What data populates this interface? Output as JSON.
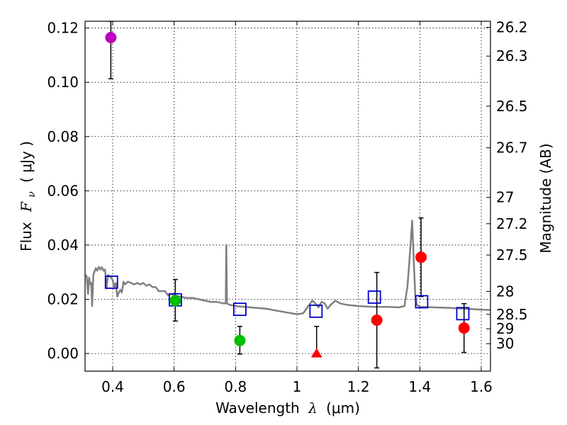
{
  "chart_data": {
    "type": "scatter",
    "xlabel_prefix": "Wavelength",
    "xlabel_symbol": "λ",
    "xlabel_unit": "(μm)",
    "ylabel_prefix": "Flux",
    "ylabel_symbol": "F",
    "ylabel_sub": "ν",
    "ylabel_unit": "( μJy )",
    "y2label": "Magnitude (AB)",
    "xlim": [
      0.31,
      1.63
    ],
    "ylim": [
      -0.0065,
      0.1225
    ],
    "grid": true,
    "x_ticks": [
      {
        "value": 0.4,
        "label": "0.4"
      },
      {
        "value": 0.6,
        "label": "0.6"
      },
      {
        "value": 0.8,
        "label": "0.8"
      },
      {
        "value": 1.0,
        "label": "1"
      },
      {
        "value": 1.2,
        "label": "1.2"
      },
      {
        "value": 1.4,
        "label": "1.4"
      },
      {
        "value": 1.6,
        "label": "1.6"
      }
    ],
    "y_ticks": [
      {
        "value": 0.0,
        "label": "0.00"
      },
      {
        "value": 0.02,
        "label": "0.02"
      },
      {
        "value": 0.04,
        "label": "0.04"
      },
      {
        "value": 0.06,
        "label": "0.06"
      },
      {
        "value": 0.08,
        "label": "0.08"
      },
      {
        "value": 0.1,
        "label": "0.10"
      },
      {
        "value": 0.12,
        "label": "0.12"
      }
    ],
    "mag_ticks": [
      {
        "value": 26.2,
        "label": "26.2"
      },
      {
        "value": 26.3,
        "label": "26.3"
      },
      {
        "value": 26.5,
        "label": "26.5"
      },
      {
        "value": 26.7,
        "label": "26.7"
      },
      {
        "value": 27,
        "label": "27"
      },
      {
        "value": 27.2,
        "label": "27.2"
      },
      {
        "value": 27.5,
        "label": "27.5"
      },
      {
        "value": 28,
        "label": "28"
      },
      {
        "value": 28.5,
        "label": "28.5"
      },
      {
        "value": 29,
        "label": "29"
      },
      {
        "value": 30,
        "label": "30"
      }
    ],
    "template_spectrum": {
      "color": "#808080",
      "points": [
        [
          0.31,
          0.029
        ],
        [
          0.315,
          0.0285
        ],
        [
          0.32,
          0.022
        ],
        [
          0.323,
          0.028
        ],
        [
          0.327,
          0.0255
        ],
        [
          0.33,
          0.026
        ],
        [
          0.333,
          0.0175
        ],
        [
          0.337,
          0.029
        ],
        [
          0.345,
          0.0315
        ],
        [
          0.35,
          0.0305
        ],
        [
          0.355,
          0.032
        ],
        [
          0.36,
          0.031
        ],
        [
          0.365,
          0.0318
        ],
        [
          0.37,
          0.0305
        ],
        [
          0.375,
          0.031
        ],
        [
          0.38,
          0.024
        ],
        [
          0.385,
          0.029
        ],
        [
          0.39,
          0.0285
        ],
        [
          0.395,
          0.028
        ],
        [
          0.4,
          0.027
        ],
        [
          0.405,
          0.0245
        ],
        [
          0.41,
          0.026
        ],
        [
          0.415,
          0.021
        ],
        [
          0.42,
          0.0225
        ],
        [
          0.425,
          0.0235
        ],
        [
          0.43,
          0.0225
        ],
        [
          0.435,
          0.0265
        ],
        [
          0.44,
          0.0255
        ],
        [
          0.45,
          0.0265
        ],
        [
          0.46,
          0.026
        ],
        [
          0.47,
          0.0255
        ],
        [
          0.48,
          0.026
        ],
        [
          0.49,
          0.0255
        ],
        [
          0.5,
          0.026
        ],
        [
          0.51,
          0.025
        ],
        [
          0.52,
          0.0255
        ],
        [
          0.53,
          0.0245
        ],
        [
          0.54,
          0.0245
        ],
        [
          0.55,
          0.023
        ],
        [
          0.56,
          0.023
        ],
        [
          0.57,
          0.023
        ],
        [
          0.58,
          0.0215
        ],
        [
          0.59,
          0.022
        ],
        [
          0.6,
          0.0215
        ],
        [
          0.62,
          0.021
        ],
        [
          0.64,
          0.0205
        ],
        [
          0.66,
          0.0205
        ],
        [
          0.68,
          0.02
        ],
        [
          0.7,
          0.0195
        ],
        [
          0.72,
          0.019
        ],
        [
          0.74,
          0.019
        ],
        [
          0.76,
          0.0185
        ],
        [
          0.768,
          0.0185
        ],
        [
          0.77,
          0.04
        ],
        [
          0.772,
          0.0185
        ],
        [
          0.78,
          0.018
        ],
        [
          0.8,
          0.0175
        ],
        [
          0.85,
          0.017
        ],
        [
          0.9,
          0.0165
        ],
        [
          0.95,
          0.0155
        ],
        [
          1.0,
          0.0145
        ],
        [
          1.02,
          0.0148
        ],
        [
          1.04,
          0.018
        ],
        [
          1.05,
          0.0195
        ],
        [
          1.06,
          0.0185
        ],
        [
          1.07,
          0.017
        ],
        [
          1.08,
          0.019
        ],
        [
          1.09,
          0.0185
        ],
        [
          1.1,
          0.0165
        ],
        [
          1.11,
          0.018
        ],
        [
          1.125,
          0.0195
        ],
        [
          1.14,
          0.0185
        ],
        [
          1.16,
          0.018
        ],
        [
          1.2,
          0.0175
        ],
        [
          1.25,
          0.0172
        ],
        [
          1.3,
          0.0172
        ],
        [
          1.33,
          0.017
        ],
        [
          1.35,
          0.0175
        ],
        [
          1.36,
          0.025
        ],
        [
          1.37,
          0.04
        ],
        [
          1.375,
          0.049
        ],
        [
          1.38,
          0.035
        ],
        [
          1.385,
          0.022
        ],
        [
          1.39,
          0.018
        ],
        [
          1.4,
          0.0172
        ],
        [
          1.45,
          0.017
        ],
        [
          1.5,
          0.0168
        ],
        [
          1.55,
          0.0165
        ],
        [
          1.6,
          0.0162
        ],
        [
          1.63,
          0.016
        ]
      ]
    },
    "model_fluxes": {
      "marker": "open-square",
      "color": "#0000cc",
      "points": [
        [
          0.396,
          0.0263
        ],
        [
          0.604,
          0.0198
        ],
        [
          0.814,
          0.0163
        ],
        [
          1.062,
          0.0156
        ],
        [
          1.252,
          0.0208
        ],
        [
          1.406,
          0.0191
        ],
        [
          1.54,
          0.0147
        ]
      ]
    },
    "observations": [
      {
        "x": 0.394,
        "y": 0.1165,
        "err_low": 0.0152,
        "err_high": 0.006,
        "marker": "circle",
        "color": "#bf00bf"
      },
      {
        "x": 0.604,
        "y": 0.0195,
        "err_low": 0.0075,
        "err_high": 0.0078,
        "marker": "circle",
        "color": "#00bf00"
      },
      {
        "x": 0.814,
        "y": 0.0048,
        "err_low": 0.005,
        "err_high": 0.0052,
        "marker": "circle",
        "color": "#00bf00"
      },
      {
        "x": 1.064,
        "y": 0.0,
        "err_low": 0.0,
        "err_high": 0.01,
        "marker": "triangle",
        "color": "#ff0000"
      },
      {
        "x": 1.26,
        "y": 0.0123,
        "err_low": 0.0176,
        "err_high": 0.0176,
        "marker": "circle",
        "color": "#ff0000"
      },
      {
        "x": 1.404,
        "y": 0.0355,
        "err_low": 0.0145,
        "err_high": 0.0145,
        "marker": "circle",
        "color": "#ff0000"
      },
      {
        "x": 1.544,
        "y": 0.0094,
        "err_low": 0.009,
        "err_high": 0.009,
        "marker": "circle",
        "color": "#ff0000"
      }
    ]
  }
}
